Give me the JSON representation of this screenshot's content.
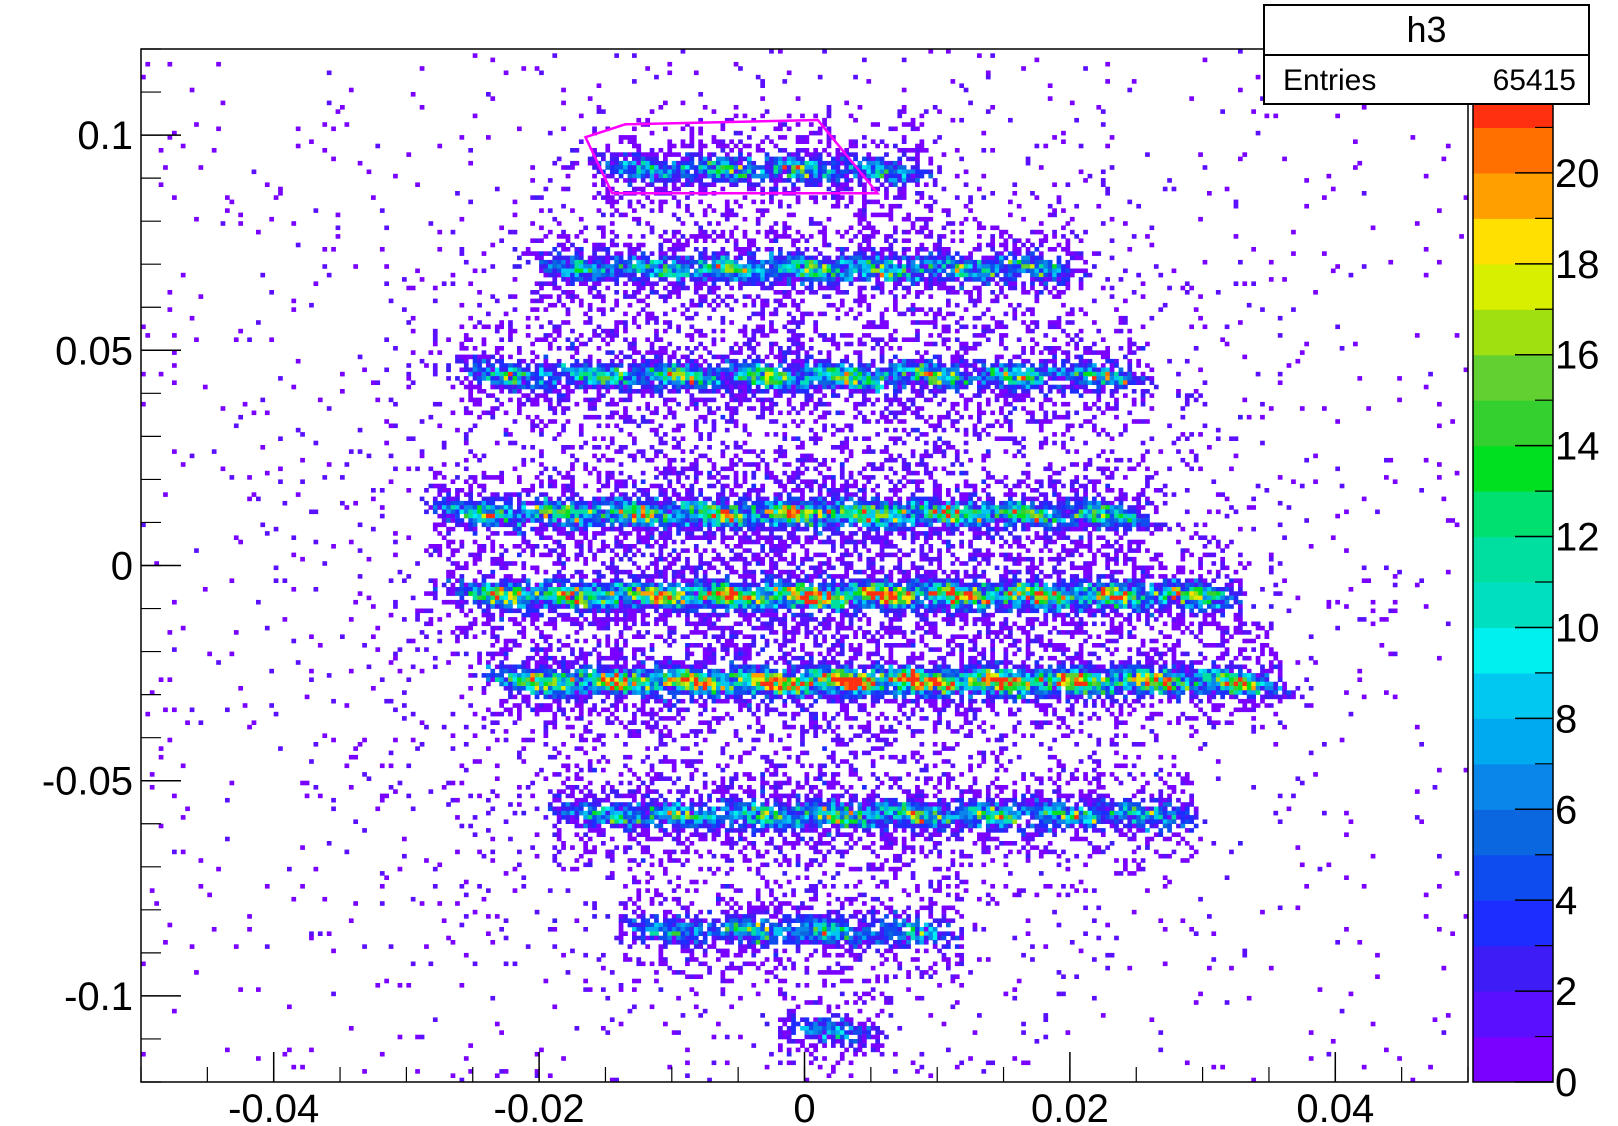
{
  "chart_data": {
    "type": "heatmap",
    "title": "",
    "xlabel": "",
    "ylabel": "",
    "xlim": [
      -0.05,
      0.05
    ],
    "ylim": [
      -0.12,
      0.12
    ],
    "x_ticks": [
      -0.04,
      -0.02,
      0,
      0.02,
      0.04
    ],
    "x_tick_labels": [
      "-0.04",
      "-0.02",
      "0",
      "0.02",
      "0.04"
    ],
    "y_ticks": [
      0.1,
      0.05,
      0,
      -0.05,
      -0.1
    ],
    "y_tick_labels": [
      "0.1",
      "0.05",
      "0",
      "-0.05",
      "-0.1"
    ],
    "z_range": [
      0,
      22
    ],
    "z_ticks": [
      0,
      2,
      4,
      6,
      8,
      10,
      12,
      14,
      16,
      18,
      20
    ],
    "z_tick_labels": [
      "0",
      "2",
      "4",
      "6",
      "8",
      "10",
      "12",
      "14",
      "16",
      "18",
      "20"
    ],
    "palette": [
      "#7a00ff",
      "#5a10ff",
      "#3d1cf5",
      "#1d2dff",
      "#0e4cf0",
      "#0a67e0",
      "#0a86ea",
      "#00aaf0",
      "#00c8f0",
      "#00f0f0",
      "#00e0c0",
      "#00dfa0",
      "#00e070",
      "#00e020",
      "#34d030",
      "#62d030",
      "#a0e010",
      "#d8f000",
      "#ffe000",
      "#ffa000",
      "#ff7000",
      "#ff3010"
    ],
    "rows": [
      {
        "y": 0.092,
        "x_start": -0.012,
        "x_step": 0.0058,
        "count": 4,
        "peak": 9,
        "spread": 0.004
      },
      {
        "y": 0.069,
        "x_start": -0.017,
        "x_step": 0.0057,
        "count": 7,
        "peak": 10,
        "spread": 0.006
      },
      {
        "y": 0.044,
        "x_start": -0.022,
        "x_step": 0.0063,
        "count": 8,
        "peak": 12,
        "spread": 0.007
      },
      {
        "y": 0.012,
        "x_start": -0.024,
        "x_step": 0.0058,
        "count": 9,
        "peak": 14,
        "spread": 0.008
      },
      {
        "y": -0.007,
        "x_start": -0.023,
        "x_step": 0.0058,
        "count": 10,
        "peak": 18,
        "spread": 0.008
      },
      {
        "y": -0.027,
        "x_start": -0.02,
        "x_step": 0.0058,
        "count": 10,
        "peak": 20,
        "spread": 0.008
      },
      {
        "y": -0.058,
        "x_start": -0.015,
        "x_step": 0.0058,
        "count": 8,
        "peak": 11,
        "spread": 0.006
      },
      {
        "y": -0.085,
        "x_start": -0.01,
        "x_step": 0.006,
        "count": 4,
        "peak": 9,
        "spread": 0.004
      },
      {
        "y": -0.108,
        "x_start": 0.002,
        "x_step": 0.0,
        "count": 1,
        "peak": 5,
        "spread": 0.002
      }
    ],
    "cut_polygon": {
      "color": "#ff00ff",
      "points": [
        [
          -0.0165,
          0.0995
        ],
        [
          -0.0135,
          0.1025
        ],
        [
          0.001,
          0.1035
        ],
        [
          0.0055,
          0.0865
        ],
        [
          -0.0145,
          0.0865
        ]
      ]
    },
    "stats": {
      "name": "h3",
      "entries_label": "Entries",
      "entries_value": "65415"
    }
  }
}
